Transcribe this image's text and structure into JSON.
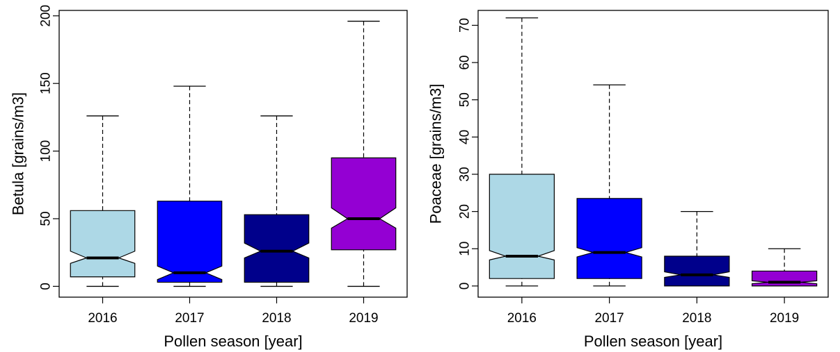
{
  "chart_data": [
    {
      "type": "boxplot",
      "notched": true,
      "xlabel": "Pollen season [year]",
      "ylabel": "Betula [grains/m3]",
      "ylim": [
        -8,
        204
      ],
      "yticks": [
        0,
        50,
        100,
        150,
        200
      ],
      "categories": [
        "2016",
        "2017",
        "2018",
        "2019"
      ],
      "boxes": [
        {
          "category": "2016",
          "min": 0,
          "q1": 7,
          "median": 21,
          "q3": 56,
          "max": 126,
          "notch_low": 17,
          "notch_high": 26,
          "color": "#add8e6"
        },
        {
          "category": "2017",
          "min": 0,
          "q1": 3,
          "median": 10,
          "q3": 63,
          "max": 148,
          "notch_low": 5,
          "notch_high": 15,
          "color": "#0000ff"
        },
        {
          "category": "2018",
          "min": 0,
          "q1": 3,
          "median": 26,
          "q3": 53,
          "max": 126,
          "notch_low": 21,
          "notch_high": 32,
          "color": "#00008b"
        },
        {
          "category": "2019",
          "min": 0,
          "q1": 27,
          "median": 50,
          "q3": 95,
          "max": 196,
          "notch_low": 43,
          "notch_high": 58,
          "color": "#9400d3"
        }
      ]
    },
    {
      "type": "boxplot",
      "notched": true,
      "xlabel": "Pollen season [year]",
      "ylabel": "Poaceae [grains/m3]",
      "ylim": [
        -3,
        74
      ],
      "yticks": [
        0,
        10,
        20,
        30,
        40,
        50,
        60,
        70
      ],
      "categories": [
        "2016",
        "2017",
        "2018",
        "2019"
      ],
      "boxes": [
        {
          "category": "2016",
          "min": 0,
          "q1": 2,
          "median": 8,
          "q3": 30,
          "max": 72,
          "notch_low": 7,
          "notch_high": 9.5,
          "color": "#add8e6"
        },
        {
          "category": "2017",
          "min": 0,
          "q1": 2,
          "median": 9,
          "q3": 23.5,
          "max": 54,
          "notch_low": 7.8,
          "notch_high": 10.3,
          "color": "#0000ff"
        },
        {
          "category": "2018",
          "min": 0,
          "q1": 0,
          "median": 3,
          "q3": 8,
          "max": 20,
          "notch_low": 2.3,
          "notch_high": 3.8,
          "color": "#00008b"
        },
        {
          "category": "2019",
          "min": 0,
          "q1": 0,
          "median": 1,
          "q3": 4,
          "max": 10,
          "notch_low": 0.6,
          "notch_high": 1.4,
          "color": "#9400d3"
        }
      ]
    }
  ]
}
